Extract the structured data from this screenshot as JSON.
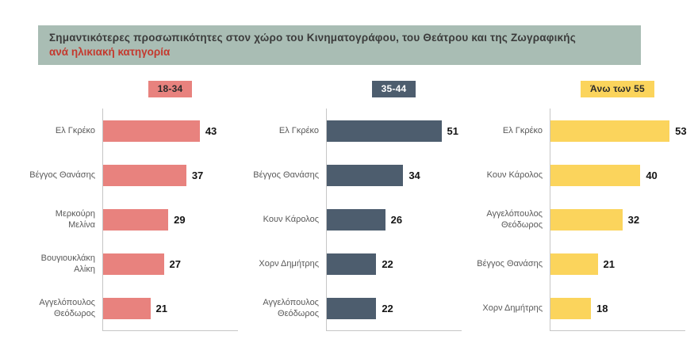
{
  "title": {
    "line1": "Σημαντικότερες προσωπικότητες  στον χώρο του Κινηματογράφου, του Θεάτρου και της Ζωγραφικής",
    "line2": "ανά ηλικιακή κατηγορία",
    "box_bg": "#a9bdb4",
    "line1_color": "#3b3b3b",
    "line2_color": "#c4392e"
  },
  "chart_data": [
    {
      "type": "bar",
      "orientation": "horizontal",
      "group_label": "18-34",
      "badge_bg": "#e8827e",
      "badge_text_color": "#2b2b2b",
      "bar_color": "#e8827e",
      "categories": [
        "Ελ Γκρέκο",
        "Βέγγος Θανάσης",
        "Μερκούρη Μελίνα",
        "Βουγιουκλάκη Αλίκη",
        "Αγγελόπουλος Θεόδωρος"
      ],
      "values": [
        43,
        37,
        29,
        27,
        21
      ],
      "xlim": [
        0,
        60
      ],
      "value_labels": true,
      "grid": false,
      "legend": false
    },
    {
      "type": "bar",
      "orientation": "horizontal",
      "group_label": "35-44",
      "badge_bg": "#4d5d6e",
      "badge_text_color": "#ffffff",
      "bar_color": "#4d5d6e",
      "categories": [
        "Ελ Γκρέκο",
        "Βέγγος Θανάσης",
        "Κουν Κάρολος",
        "Χορν Δημήτρης",
        "Αγγελόπουλος Θεόδωρος"
      ],
      "values": [
        51,
        34,
        26,
        22,
        22
      ],
      "xlim": [
        0,
        60
      ],
      "value_labels": true,
      "grid": false,
      "legend": false
    },
    {
      "type": "bar",
      "orientation": "horizontal",
      "group_label": "Άνω των 55",
      "badge_bg": "#fbd45c",
      "badge_text_color": "#2b2b2b",
      "bar_color": "#fbd45c",
      "categories": [
        "Ελ Γκρέκο",
        "Κουν Κάρολος",
        "Αγγελόπουλος Θεόδωρος",
        "Βέγγος Θανάσης",
        "Χορν Δημήτρης"
      ],
      "values": [
        53,
        40,
        32,
        21,
        18
      ],
      "xlim": [
        0,
        60
      ],
      "value_labels": true,
      "grid": false,
      "legend": false
    }
  ]
}
